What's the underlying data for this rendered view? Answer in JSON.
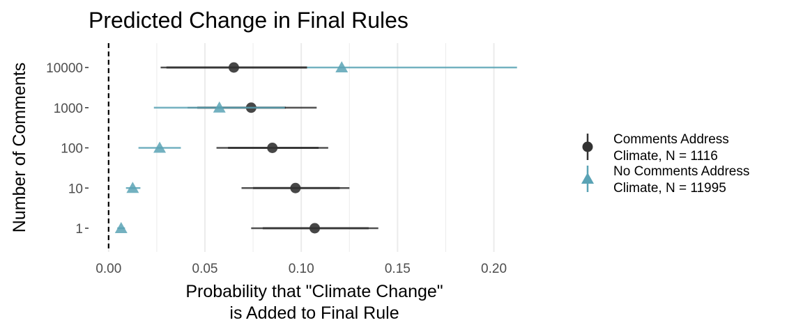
{
  "chart_data": {
    "type": "scatter",
    "title": "Predicted Change in Final Rules",
    "xlabel": [
      "Probability that \"Climate Change\"",
      "is Added to Final Rule"
    ],
    "ylabel": "Number of Comments",
    "xlim": [
      -0.005,
      0.215
    ],
    "x_ticks": [
      0.0,
      0.05,
      0.1,
      0.15,
      0.2
    ],
    "x_tick_labels": [
      "0.00",
      "0.05",
      "0.10",
      "0.15",
      "0.20"
    ],
    "categories": [
      "1",
      "10",
      "100",
      "1000",
      "10000"
    ],
    "reference_line": {
      "x": 0,
      "style": "dashed"
    },
    "grid": {
      "vertical": true,
      "horizontal": false
    },
    "legend_position": "right",
    "series": [
      {
        "name": [
          "Comments Address",
          "Climate, N = 1116"
        ],
        "marker": "circle",
        "color": "#333333",
        "estimate": [
          0.107,
          0.097,
          0.085,
          0.074,
          0.065
        ],
        "lower": [
          0.074,
          0.069,
          0.056,
          0.041,
          0.027
        ],
        "upper": [
          0.14,
          0.125,
          0.114,
          0.108,
          0.103
        ],
        "inner_lower": [
          0.08,
          0.075,
          0.062,
          0.046,
          0.03
        ],
        "inner_upper": [
          0.135,
          0.12,
          0.109,
          0.092,
          0.103
        ]
      },
      {
        "name": [
          "No Comments Address",
          "Climate, N = 11995"
        ],
        "marker": "triangle",
        "color": "#5aa3b5",
        "estimate": [
          0.0065,
          0.0125,
          0.0265,
          0.0575,
          0.121
        ],
        "lower": [
          0.0045,
          0.009,
          0.0155,
          0.0235,
          0.103
        ],
        "upper": [
          0.0085,
          0.0165,
          0.0375,
          0.0915,
          0.212
        ]
      }
    ]
  }
}
